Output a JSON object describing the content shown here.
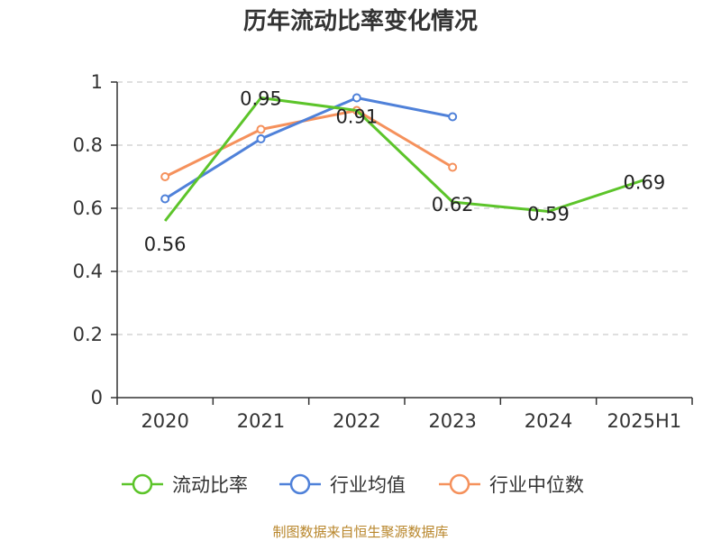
{
  "chart_data": {
    "type": "line",
    "title": "历年流动比率变化情况",
    "categories": [
      "2020",
      "2021",
      "2022",
      "2023",
      "2024",
      "2025H1"
    ],
    "ylim": [
      0,
      1
    ],
    "yticks": [
      "0",
      "0.2",
      "0.4",
      "0.6",
      "0.8",
      "1"
    ],
    "grid": true,
    "legend_position": "bottom",
    "series": [
      {
        "name": "流动比率",
        "color": "#5cc42a",
        "values": [
          0.56,
          0.95,
          0.91,
          0.62,
          0.59,
          0.69
        ],
        "labels": [
          "0.56",
          "0.95",
          "0.91",
          "0.62",
          "0.59",
          "0.69"
        ],
        "show_markers": false
      },
      {
        "name": "行业均值",
        "color": "#4f81d9",
        "values": [
          0.63,
          0.82,
          0.95,
          0.89,
          null,
          null
        ],
        "show_markers": true
      },
      {
        "name": "行业中位数",
        "color": "#f5915c",
        "values": [
          0.7,
          0.85,
          0.91,
          0.73,
          null,
          null
        ],
        "show_markers": true
      }
    ],
    "source": "制图数据来自恒生聚源数据库"
  }
}
